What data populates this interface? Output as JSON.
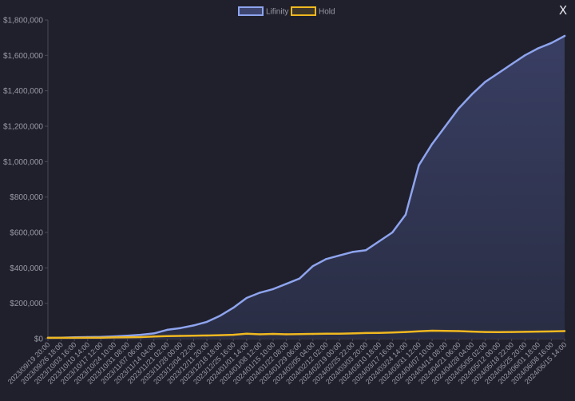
{
  "close_label": "X",
  "chart_data": {
    "type": "area",
    "legend_position": "top-center",
    "grid": false,
    "ylim": [
      0,
      1800000
    ],
    "y_ticks": [
      "$0",
      "$200,000",
      "$400,000",
      "$600,000",
      "$800,000",
      "$1,000,000",
      "$1,200,000",
      "$1,400,000",
      "$1,600,000",
      "$1,800,000"
    ],
    "x_ticks": [
      "2023/09/19 20:00",
      "2023/09/26 18:00",
      "2023/10/03 16:00",
      "2023/10/10 14:00",
      "2023/10/17 12:00",
      "2023/10/24 10:00",
      "2023/10/31 08:00",
      "2023/11/07 06:00",
      "2023/11/14 04:00",
      "2023/11/21 02:00",
      "2023/11/28 00:00",
      "2023/12/04 22:00",
      "2023/12/11 20:00",
      "2023/12/18 18:00",
      "2023/12/25 16:00",
      "2024/01/01 14:00",
      "2024/01/08 12:00",
      "2024/01/15 10:00",
      "2024/01/22 08:00",
      "2024/01/29 06:00",
      "2024/02/05 04:00",
      "2024/02/12 02:00",
      "2024/02/19 00:00",
      "2024/02/25 22:00",
      "2024/03/03 20:00",
      "2024/03/10 18:00",
      "2024/03/17 16:00",
      "2024/03/24 14:00",
      "2024/03/31 12:00",
      "2024/04/07 10:00",
      "2024/04/14 08:00",
      "2024/04/21 06:00",
      "2024/04/28 04:00",
      "2024/05/05 02:00",
      "2024/05/12 00:00",
      "2024/05/18 22:00",
      "2024/05/25 20:00",
      "2024/06/01 18:00",
      "2024/06/08 16:00",
      "2024/06/15 14:00"
    ],
    "series": [
      {
        "name": "Lifinity",
        "color": "#8ea4ee",
        "fill": "#343a5a",
        "values": [
          5000,
          6000,
          8000,
          9000,
          10000,
          13000,
          17000,
          22000,
          30000,
          50000,
          60000,
          75000,
          95000,
          130000,
          175000,
          230000,
          260000,
          280000,
          310000,
          340000,
          410000,
          450000,
          470000,
          490000,
          500000,
          550000,
          600000,
          700000,
          980000,
          1100000,
          1200000,
          1300000,
          1380000,
          1450000,
          1500000,
          1550000,
          1600000,
          1640000,
          1670000,
          1710000
        ]
      },
      {
        "name": "Hold",
        "color": "#f0b820",
        "fill": "none",
        "values": [
          5000,
          5000,
          5000,
          6000,
          6000,
          7000,
          8000,
          9000,
          12000,
          15000,
          16000,
          17000,
          18000,
          20000,
          22000,
          28000,
          25000,
          27000,
          25000,
          26000,
          27000,
          28000,
          28000,
          30000,
          32000,
          33000,
          35000,
          38000,
          42000,
          45000,
          44000,
          43000,
          40000,
          38000,
          37000,
          38000,
          39000,
          40000,
          41000,
          43000
        ]
      }
    ]
  }
}
